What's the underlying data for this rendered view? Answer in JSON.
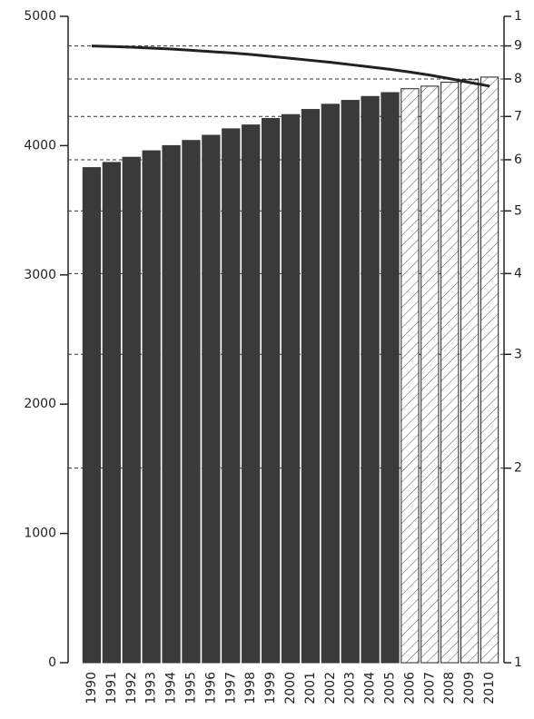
{
  "chart_data": {
    "type": "bar",
    "categories": [
      "1990",
      "1991",
      "1992",
      "1993",
      "1994",
      "1995",
      "1996",
      "1997",
      "1998",
      "1999",
      "2000",
      "2001",
      "2002",
      "2003",
      "2004",
      "2005",
      "2006",
      "2007",
      "2008",
      "2009",
      "2010"
    ],
    "series": [
      {
        "type": "bar",
        "color": "#3a3a3a",
        "values": [
          3830,
          3870,
          3910,
          3960,
          4000,
          4040,
          4080,
          4130,
          4160,
          4210,
          4240,
          4280,
          4320,
          4350,
          4380,
          4410,
          4440,
          4460,
          4490,
          4510,
          4530
        ],
        "styles": [
          "solid",
          "solid",
          "solid",
          "solid",
          "solid",
          "solid",
          "solid",
          "solid",
          "solid",
          "solid",
          "solid",
          "solid",
          "solid",
          "solid",
          "solid",
          "solid",
          "hatched",
          "hatched",
          "hatched",
          "hatched",
          "hatched"
        ]
      },
      {
        "type": "line",
        "axis": "y2",
        "color": "#222222",
        "values": [
          9.0,
          8.98,
          8.96,
          8.93,
          8.9,
          8.86,
          8.82,
          8.78,
          8.73,
          8.67,
          8.61,
          8.55,
          8.49,
          8.42,
          8.35,
          8.28,
          8.2,
          8.11,
          8.01,
          7.9,
          7.8
        ]
      }
    ],
    "ylim": [
      0,
      5000
    ],
    "yticks": [
      0,
      1000,
      2000,
      3000,
      4000,
      5000
    ],
    "y2lim": [
      1,
      10
    ],
    "y2log": true,
    "y2ticks": [
      1,
      2,
      3,
      4,
      5,
      6,
      7,
      8,
      9,
      {
        "value": 10,
        "label": "1"
      }
    ],
    "grid": "y2"
  }
}
